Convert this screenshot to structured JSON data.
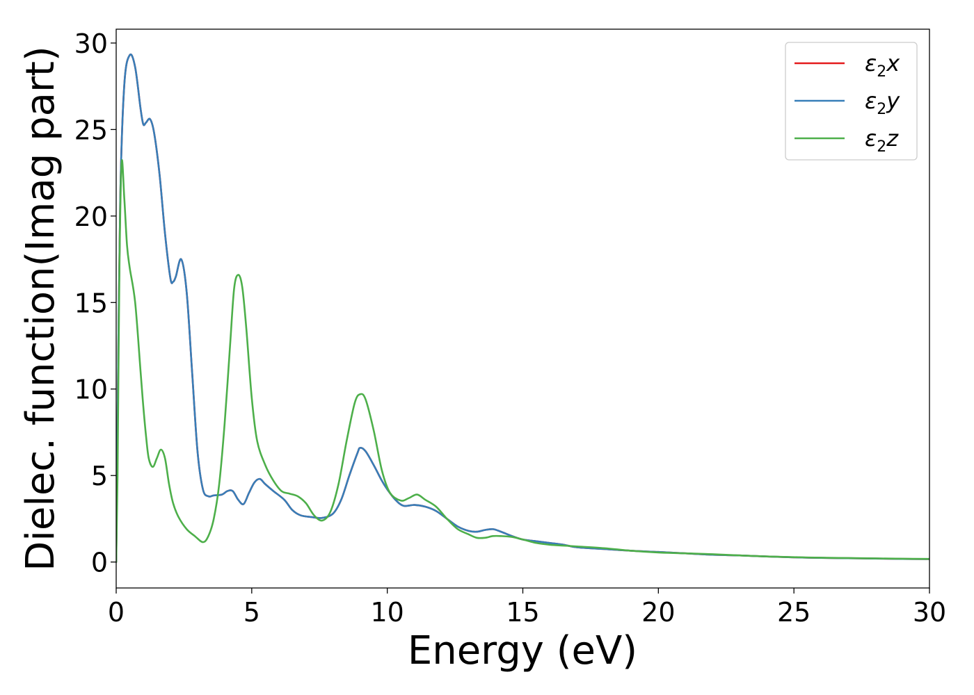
{
  "chart_data": {
    "type": "line",
    "xlabel": "Energy (eV)",
    "ylabel": "Dielec. function(Imag part)",
    "xlim": [
      0,
      30
    ],
    "ylim": [
      -1.5,
      30.8
    ],
    "xticks": [
      "0",
      "5",
      "10",
      "15",
      "20",
      "25",
      "30"
    ],
    "yticks": [
      "0",
      "5",
      "10",
      "15",
      "20",
      "25",
      "30"
    ],
    "grid": false,
    "legend_position": "top-right",
    "series": [
      {
        "name": "ε2x",
        "legend": {
          "base": "ε",
          "sub": "2",
          "var": "x"
        },
        "color": "#e41a1c",
        "x": [
          0,
          0.05,
          0.15,
          0.3,
          0.5,
          0.7,
          0.9,
          1.0,
          1.1,
          1.25,
          1.4,
          1.6,
          1.8,
          2.0,
          2.1,
          2.2,
          2.4,
          2.6,
          2.8,
          3.0,
          3.2,
          3.4,
          3.6,
          3.9,
          4.1,
          4.3,
          4.5,
          4.7,
          4.9,
          5.1,
          5.3,
          5.5,
          5.8,
          6.2,
          6.5,
          6.8,
          7.2,
          7.6,
          8.0,
          8.3,
          8.6,
          8.9,
          9.0,
          9.2,
          9.5,
          9.8,
          10.0,
          10.3,
          10.6,
          11.0,
          11.4,
          11.8,
          12.2,
          12.6,
          13.0,
          13.3,
          13.6,
          13.9,
          14.2,
          14.6,
          15.0,
          15.5,
          16.0,
          16.5,
          17.0,
          18.0,
          19.0,
          20.0,
          21.0,
          22.0,
          23.0,
          24.0,
          25.0,
          26.0,
          27.0,
          28.0,
          29.0,
          30.0
        ],
        "y": [
          0.0,
          8.0,
          21.0,
          27.6,
          29.3,
          28.6,
          26.2,
          25.3,
          25.4,
          25.6,
          24.8,
          22.4,
          19.0,
          16.4,
          16.2,
          16.5,
          17.5,
          15.6,
          11.0,
          6.4,
          4.2,
          3.8,
          3.85,
          3.9,
          4.1,
          4.1,
          3.6,
          3.35,
          4.0,
          4.6,
          4.8,
          4.5,
          4.1,
          3.6,
          3.0,
          2.7,
          2.6,
          2.55,
          2.8,
          3.6,
          5.0,
          6.3,
          6.6,
          6.4,
          5.6,
          4.7,
          4.2,
          3.6,
          3.25,
          3.3,
          3.2,
          2.95,
          2.5,
          2.05,
          1.8,
          1.75,
          1.85,
          1.9,
          1.75,
          1.5,
          1.3,
          1.2,
          1.1,
          1.0,
          0.85,
          0.75,
          0.65,
          0.58,
          0.5,
          0.42,
          0.38,
          0.32,
          0.27,
          0.24,
          0.22,
          0.2,
          0.18,
          0.17
        ]
      },
      {
        "name": "ε2y",
        "legend": {
          "base": "ε",
          "sub": "2",
          "var": "y"
        },
        "color": "#377eb8",
        "x": [
          0,
          0.05,
          0.15,
          0.3,
          0.5,
          0.7,
          0.9,
          1.0,
          1.1,
          1.25,
          1.4,
          1.6,
          1.8,
          2.0,
          2.1,
          2.2,
          2.4,
          2.6,
          2.8,
          3.0,
          3.2,
          3.4,
          3.6,
          3.9,
          4.1,
          4.3,
          4.5,
          4.7,
          4.9,
          5.1,
          5.3,
          5.5,
          5.8,
          6.2,
          6.5,
          6.8,
          7.2,
          7.6,
          8.0,
          8.3,
          8.6,
          8.9,
          9.0,
          9.2,
          9.5,
          9.8,
          10.0,
          10.3,
          10.6,
          11.0,
          11.4,
          11.8,
          12.2,
          12.6,
          13.0,
          13.3,
          13.6,
          13.9,
          14.2,
          14.6,
          15.0,
          15.5,
          16.0,
          16.5,
          17.0,
          18.0,
          19.0,
          20.0,
          21.0,
          22.0,
          23.0,
          24.0,
          25.0,
          26.0,
          27.0,
          28.0,
          29.0,
          30.0
        ],
        "y": [
          0.0,
          8.0,
          21.0,
          27.6,
          29.3,
          28.6,
          26.2,
          25.3,
          25.4,
          25.6,
          24.8,
          22.4,
          19.0,
          16.4,
          16.2,
          16.5,
          17.5,
          15.6,
          11.0,
          6.4,
          4.2,
          3.8,
          3.85,
          3.9,
          4.1,
          4.1,
          3.6,
          3.35,
          4.0,
          4.6,
          4.8,
          4.5,
          4.1,
          3.6,
          3.0,
          2.7,
          2.6,
          2.55,
          2.8,
          3.6,
          5.0,
          6.3,
          6.6,
          6.4,
          5.6,
          4.7,
          4.2,
          3.6,
          3.25,
          3.3,
          3.2,
          2.95,
          2.5,
          2.05,
          1.8,
          1.75,
          1.85,
          1.9,
          1.75,
          1.5,
          1.3,
          1.2,
          1.1,
          1.0,
          0.85,
          0.75,
          0.65,
          0.58,
          0.5,
          0.42,
          0.38,
          0.32,
          0.27,
          0.24,
          0.22,
          0.2,
          0.18,
          0.17
        ]
      },
      {
        "name": "ε2z",
        "legend": {
          "base": "ε",
          "sub": "2",
          "var": "z"
        },
        "color": "#4daf4a",
        "x": [
          0,
          0.05,
          0.12,
          0.2,
          0.3,
          0.4,
          0.5,
          0.7,
          0.9,
          1.0,
          1.1,
          1.2,
          1.35,
          1.5,
          1.65,
          1.8,
          1.95,
          2.1,
          2.3,
          2.6,
          2.9,
          3.2,
          3.4,
          3.6,
          3.8,
          4.0,
          4.2,
          4.35,
          4.5,
          4.65,
          4.8,
          5.0,
          5.2,
          5.5,
          5.8,
          6.1,
          6.4,
          6.7,
          7.0,
          7.3,
          7.6,
          7.9,
          8.2,
          8.5,
          8.8,
          9.0,
          9.2,
          9.5,
          9.8,
          10.1,
          10.5,
          10.8,
          11.1,
          11.4,
          11.8,
          12.2,
          12.6,
          13.0,
          13.3,
          13.6,
          13.9,
          14.2,
          14.6,
          15.0,
          15.5,
          16.0,
          16.5,
          17.0,
          18.0,
          19.0,
          20.0,
          21.0,
          22.0,
          23.0,
          24.0,
          25.0,
          26.0,
          27.0,
          28.0,
          29.0,
          30.0
        ],
        "y": [
          0.0,
          5.0,
          17.0,
          23.1,
          21.0,
          18.3,
          17.0,
          15.0,
          11.0,
          9.0,
          7.3,
          6.0,
          5.5,
          6.0,
          6.5,
          6.0,
          4.5,
          3.4,
          2.6,
          1.9,
          1.5,
          1.15,
          1.5,
          2.5,
          4.5,
          8.0,
          12.5,
          15.8,
          16.6,
          15.9,
          13.5,
          9.5,
          7.0,
          5.6,
          4.7,
          4.1,
          3.95,
          3.8,
          3.4,
          2.7,
          2.4,
          2.9,
          4.5,
          7.0,
          9.2,
          9.7,
          9.4,
          7.6,
          5.3,
          4.0,
          3.55,
          3.7,
          3.9,
          3.6,
          3.2,
          2.5,
          1.9,
          1.6,
          1.4,
          1.4,
          1.5,
          1.5,
          1.45,
          1.3,
          1.1,
          1.0,
          0.95,
          0.9,
          0.8,
          0.65,
          0.55,
          0.5,
          0.45,
          0.38,
          0.32,
          0.28,
          0.25,
          0.23,
          0.21,
          0.19,
          0.18
        ]
      }
    ]
  }
}
